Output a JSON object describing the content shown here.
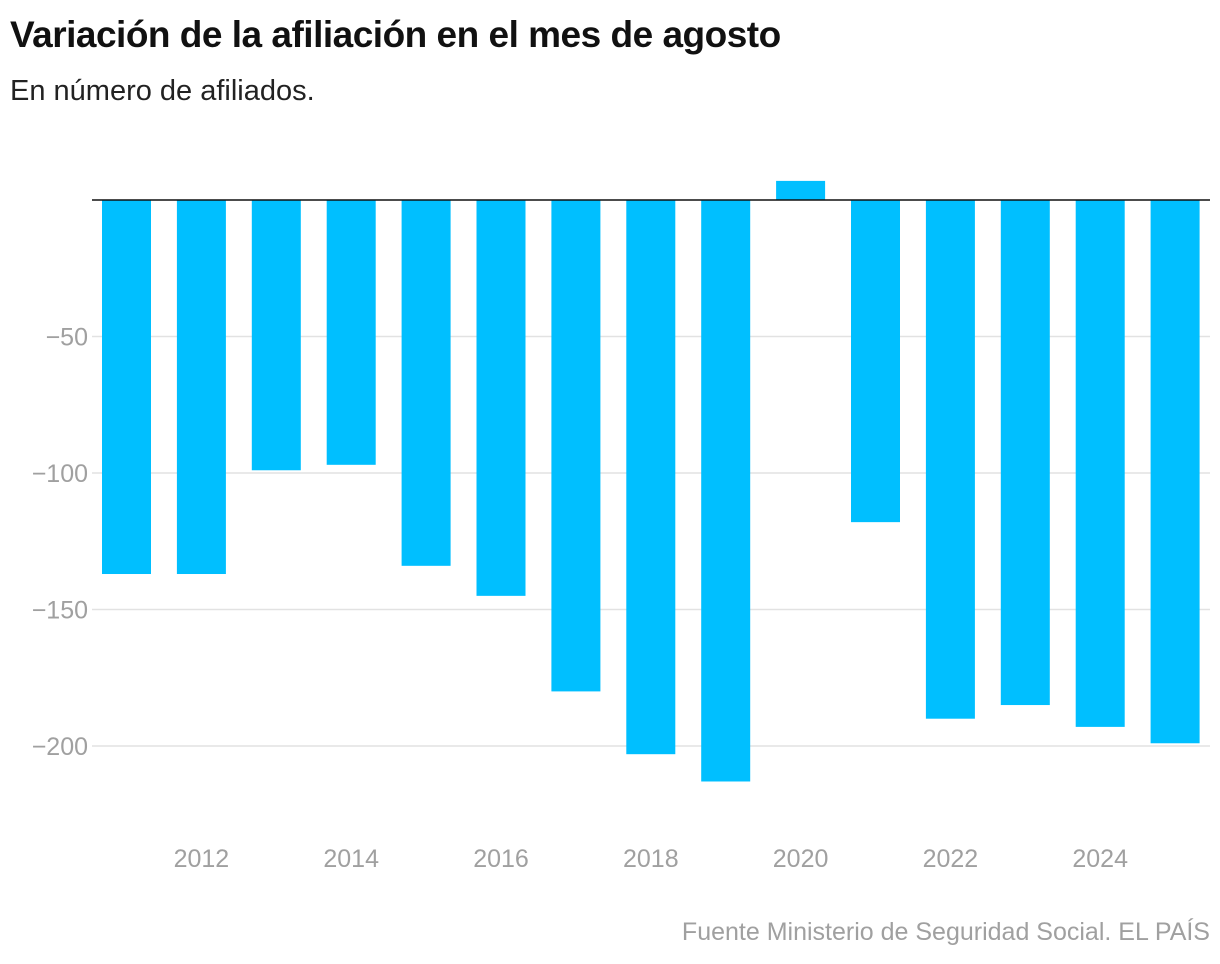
{
  "chart_data": {
    "type": "bar",
    "title": "Variación de la afiliación en el mes de agosto",
    "subtitle": "En número de afiliados.",
    "source": "Fuente Ministerio de Seguridad Social. EL PAÍS",
    "categories": [
      "2011",
      "2012",
      "2013",
      "2014",
      "2015",
      "2016",
      "2017",
      "2018",
      "2019",
      "2020",
      "2021",
      "2022",
      "2023",
      "2024",
      "2025"
    ],
    "values": [
      -137,
      -137,
      -99,
      -97,
      -134,
      -145,
      -180,
      -203,
      -213,
      7,
      -118,
      -190,
      -185,
      -193,
      -199
    ],
    "x_tick_labels": [
      "2012",
      "2014",
      "2016",
      "2018",
      "2020",
      "2022",
      "2024"
    ],
    "y_ticks": [
      -50,
      -100,
      -150,
      -200
    ],
    "y_tick_labels": [
      "−50",
      "−100",
      "−150",
      "−200"
    ],
    "ylim": [
      -225,
      10
    ],
    "grid": true,
    "bar_color": "#00bfff",
    "xlabel": "",
    "ylabel": ""
  }
}
